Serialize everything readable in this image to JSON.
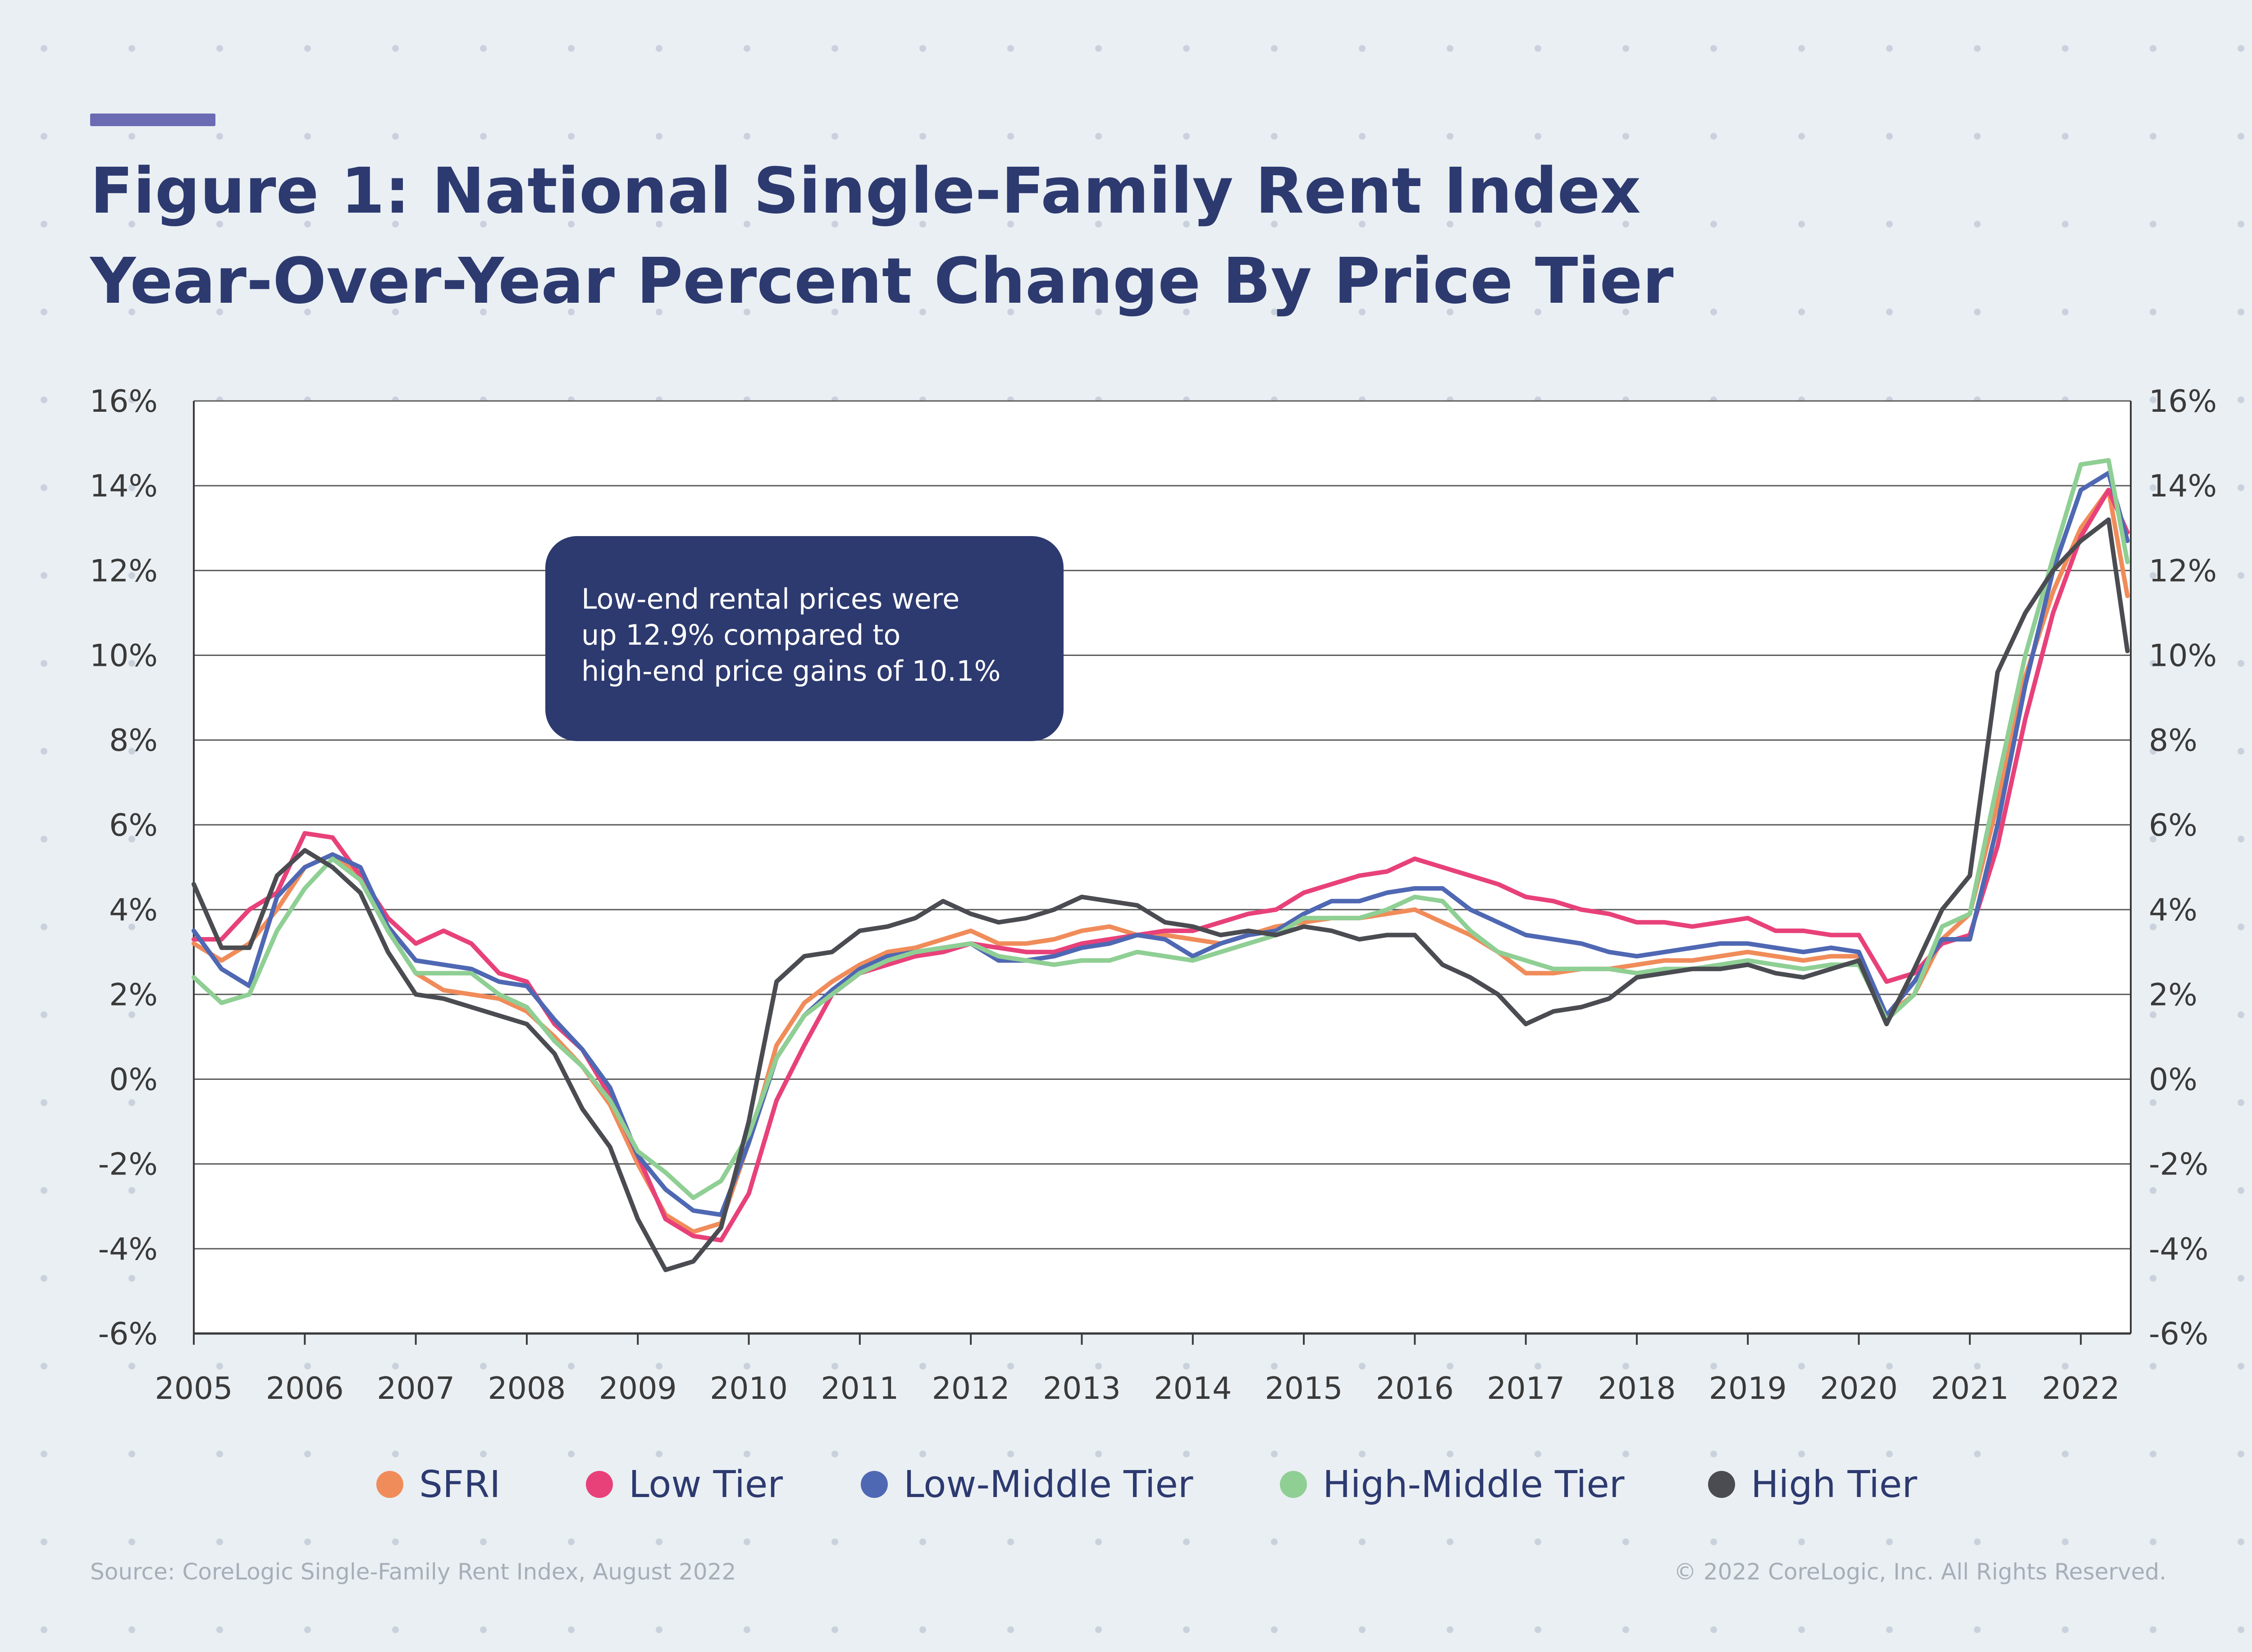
{
  "title_line1": "Figure 1: National Single-Family Rent Index",
  "title_line2": "Year-Over-Year Percent Change By Price Tier",
  "callout": {
    "line1": "Low-end rental prices were",
    "line2": "up 12.9% compared to",
    "line3": "high-end price gains of 10.1%"
  },
  "legend": [
    {
      "label": "SFRI",
      "color": "#f08c5a"
    },
    {
      "label": "Low Tier",
      "color": "#e8417a"
    },
    {
      "label": "Low-Middle Tier",
      "color": "#4f68b3"
    },
    {
      "label": "High-Middle Tier",
      "color": "#8fcf94"
    },
    {
      "label": "High Tier",
      "color": "#4a4c52"
    }
  ],
  "footer": {
    "source": "Source: CoreLogic Single-Family Rent Index, August 2022",
    "copyright": "© 2022 CoreLogic, Inc. All Rights Reserved."
  },
  "chart_data": {
    "type": "line",
    "ylabel": "",
    "xlabel": "",
    "ylim": [
      -6,
      16
    ],
    "xlim": [
      2005.0,
      2022.45
    ],
    "y_ticks": [
      "-6%",
      "-4%",
      "-2%",
      "0%",
      "2%",
      "4%",
      "6%",
      "8%",
      "10%",
      "12%",
      "14%",
      "16%"
    ],
    "x_ticks": [
      "2005",
      "2006",
      "2007",
      "2008",
      "2009",
      "2010",
      "2011",
      "2012",
      "2013",
      "2014",
      "2015",
      "2016",
      "2017",
      "2018",
      "2019",
      "2020",
      "2021",
      "2022"
    ],
    "grid": true,
    "legend_position": "bottom",
    "x": [
      2005.0,
      2005.25,
      2005.5,
      2005.75,
      2006.0,
      2006.25,
      2006.5,
      2006.75,
      2007.0,
      2007.25,
      2007.5,
      2007.75,
      2008.0,
      2008.25,
      2008.5,
      2008.75,
      2009.0,
      2009.25,
      2009.5,
      2009.75,
      2010.0,
      2010.25,
      2010.5,
      2010.75,
      2011.0,
      2011.25,
      2011.5,
      2011.75,
      2012.0,
      2012.25,
      2012.5,
      2012.75,
      2013.0,
      2013.25,
      2013.5,
      2013.75,
      2014.0,
      2014.25,
      2014.5,
      2014.75,
      2015.0,
      2015.25,
      2015.5,
      2015.75,
      2016.0,
      2016.25,
      2016.5,
      2016.75,
      2017.0,
      2017.25,
      2017.5,
      2017.75,
      2018.0,
      2018.25,
      2018.5,
      2018.75,
      2019.0,
      2019.25,
      2019.5,
      2019.75,
      2020.0,
      2020.25,
      2020.5,
      2020.75,
      2021.0,
      2021.25,
      2021.5,
      2021.75,
      2022.0,
      2022.25,
      2022.42
    ],
    "series": [
      {
        "name": "SFRI",
        "color": "#f08c5a",
        "values": [
          3.2,
          2.8,
          3.2,
          4.0,
          5.0,
          5.3,
          4.8,
          3.5,
          2.5,
          2.1,
          2.0,
          1.9,
          1.6,
          1.0,
          0.3,
          -0.6,
          -2.0,
          -3.2,
          -3.6,
          -3.4,
          -1.5,
          0.8,
          1.8,
          2.3,
          2.7,
          3.0,
          3.1,
          3.3,
          3.5,
          3.2,
          3.2,
          3.3,
          3.5,
          3.6,
          3.4,
          3.4,
          3.3,
          3.2,
          3.4,
          3.6,
          3.7,
          3.8,
          3.8,
          3.9,
          4.0,
          3.7,
          3.4,
          3.0,
          2.5,
          2.5,
          2.6,
          2.6,
          2.7,
          2.8,
          2.8,
          2.9,
          3.0,
          2.9,
          2.8,
          2.9,
          2.9,
          1.5,
          2.0,
          3.3,
          3.9,
          6.5,
          9.5,
          11.5,
          13.0,
          13.9,
          11.4
        ]
      },
      {
        "name": "Low Tier",
        "color": "#e8417a",
        "values": [
          3.3,
          3.3,
          4.0,
          4.4,
          5.8,
          5.7,
          4.8,
          3.8,
          3.2,
          3.5,
          3.2,
          2.5,
          2.3,
          1.3,
          0.7,
          -0.4,
          -1.8,
          -3.3,
          -3.7,
          -3.8,
          -2.7,
          -0.5,
          0.8,
          2.0,
          2.5,
          2.7,
          2.9,
          3.0,
          3.2,
          3.1,
          3.0,
          3.0,
          3.2,
          3.3,
          3.4,
          3.5,
          3.5,
          3.7,
          3.9,
          4.0,
          4.4,
          4.6,
          4.8,
          4.9,
          5.2,
          5.0,
          4.8,
          4.6,
          4.3,
          4.2,
          4.0,
          3.9,
          3.7,
          3.7,
          3.6,
          3.7,
          3.8,
          3.5,
          3.5,
          3.4,
          3.4,
          2.3,
          2.5,
          3.2,
          3.4,
          5.5,
          8.5,
          11.0,
          12.8,
          13.9,
          12.9
        ]
      },
      {
        "name": "Low-Middle Tier",
        "color": "#4f68b3",
        "values": [
          3.5,
          2.6,
          2.2,
          4.3,
          5.0,
          5.3,
          5.0,
          3.6,
          2.8,
          2.7,
          2.6,
          2.3,
          2.2,
          1.4,
          0.7,
          -0.2,
          -1.8,
          -2.6,
          -3.1,
          -3.2,
          -1.5,
          0.5,
          1.5,
          2.1,
          2.6,
          2.9,
          3.0,
          3.1,
          3.2,
          2.8,
          2.8,
          2.9,
          3.1,
          3.2,
          3.4,
          3.3,
          2.9,
          3.2,
          3.4,
          3.5,
          3.9,
          4.2,
          4.2,
          4.4,
          4.5,
          4.5,
          4.0,
          3.7,
          3.4,
          3.3,
          3.2,
          3.0,
          2.9,
          3.0,
          3.1,
          3.2,
          3.2,
          3.1,
          3.0,
          3.1,
          3.0,
          1.5,
          2.3,
          3.3,
          3.3,
          6.0,
          9.3,
          12.0,
          13.9,
          14.3,
          12.7
        ]
      },
      {
        "name": "High-Middle Tier",
        "color": "#8fcf94",
        "values": [
          2.4,
          1.8,
          2.0,
          3.5,
          4.5,
          5.2,
          4.7,
          3.5,
          2.5,
          2.5,
          2.5,
          2.0,
          1.7,
          0.9,
          0.3,
          -0.5,
          -1.7,
          -2.2,
          -2.8,
          -2.4,
          -1.3,
          0.5,
          1.5,
          2.0,
          2.5,
          2.8,
          3.0,
          3.1,
          3.2,
          2.9,
          2.8,
          2.7,
          2.8,
          2.8,
          3.0,
          2.9,
          2.8,
          3.0,
          3.2,
          3.4,
          3.8,
          3.8,
          3.8,
          4.0,
          4.3,
          4.2,
          3.5,
          3.0,
          2.8,
          2.6,
          2.6,
          2.6,
          2.5,
          2.6,
          2.6,
          2.7,
          2.8,
          2.7,
          2.6,
          2.7,
          2.7,
          1.4,
          2.0,
          3.6,
          3.9,
          7.0,
          10.0,
          12.3,
          14.5,
          14.6,
          12.2
        ]
      },
      {
        "name": "High Tier",
        "color": "#4a4c52",
        "values": [
          4.6,
          3.1,
          3.1,
          4.8,
          5.4,
          5.0,
          4.4,
          3.0,
          2.0,
          1.9,
          1.7,
          1.5,
          1.3,
          0.6,
          -0.7,
          -1.6,
          -3.3,
          -4.5,
          -4.3,
          -3.5,
          -1.0,
          2.3,
          2.9,
          3.0,
          3.5,
          3.6,
          3.8,
          4.2,
          3.9,
          3.7,
          3.8,
          4.0,
          4.3,
          4.2,
          4.1,
          3.7,
          3.6,
          3.4,
          3.5,
          3.4,
          3.6,
          3.5,
          3.3,
          3.4,
          3.4,
          2.7,
          2.4,
          2.0,
          1.3,
          1.6,
          1.7,
          1.9,
          2.4,
          2.5,
          2.6,
          2.6,
          2.7,
          2.5,
          2.4,
          2.6,
          2.8,
          1.3,
          2.6,
          4.0,
          4.8,
          9.6,
          11.0,
          12.0,
          12.7,
          13.2,
          10.1
        ]
      }
    ]
  }
}
